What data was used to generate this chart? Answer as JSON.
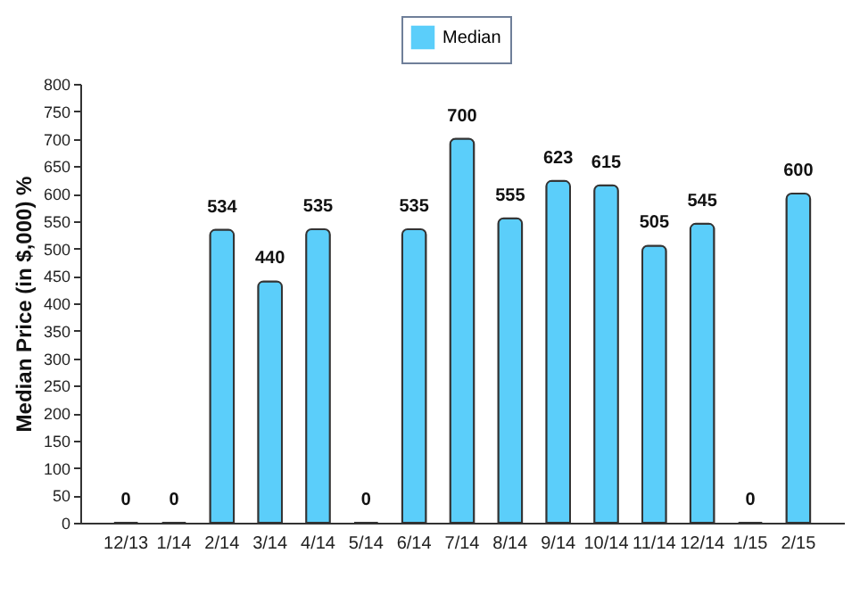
{
  "chart_data": {
    "type": "bar",
    "ylabel": "Median Price (in $,000) %",
    "categories": [
      "12/13",
      "1/14",
      "2/14",
      "3/14",
      "4/14",
      "5/14",
      "6/14",
      "7/14",
      "8/14",
      "9/14",
      "10/14",
      "11/14",
      "12/14",
      "1/15",
      "2/15"
    ],
    "series": [
      {
        "name": "Median",
        "color": "#5bcefa",
        "values": [
          0,
          0,
          534,
          440,
          535,
          0,
          535,
          700,
          555,
          623,
          615,
          505,
          545,
          0,
          600
        ]
      }
    ],
    "ylim": [
      0,
      800
    ],
    "yticks": [
      0,
      50,
      100,
      150,
      200,
      250,
      300,
      350,
      400,
      450,
      500,
      550,
      600,
      650,
      700,
      750,
      800
    ],
    "grid": false,
    "legend": "top",
    "data_labels": true
  }
}
